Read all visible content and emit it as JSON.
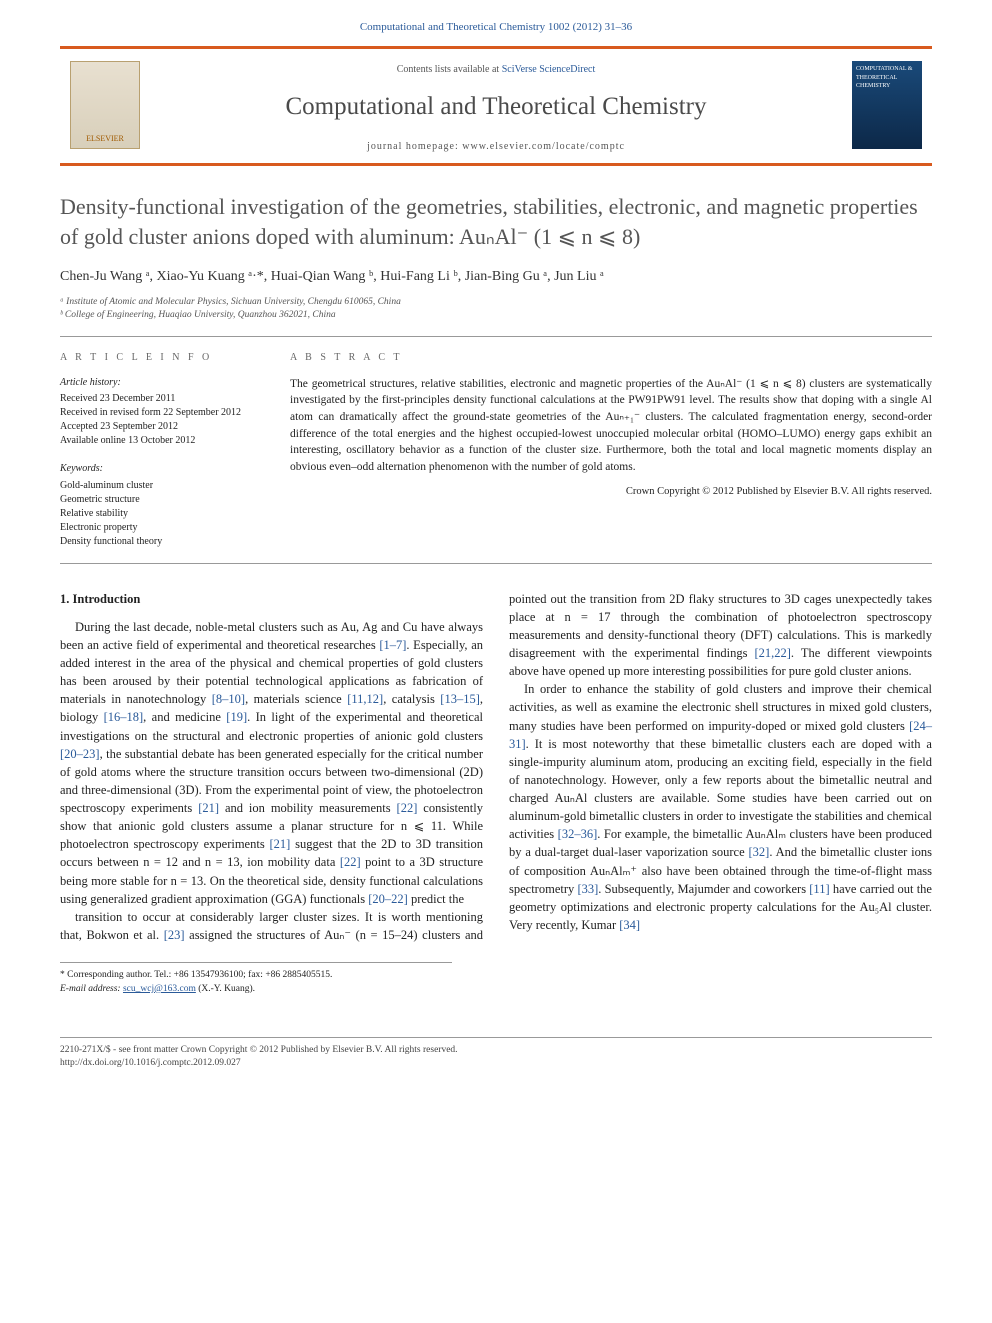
{
  "top_citation": "Computational and Theoretical Chemistry 1002 (2012) 31–36",
  "header": {
    "contents_prefix": "Contents lists available at ",
    "contents_link": "SciVerse ScienceDirect",
    "journal_name": "Computational and Theoretical Chemistry",
    "homepage_prefix": "journal homepage: ",
    "homepage_url": "www.elsevier.com/locate/comptc",
    "elsevier_label": "ELSEVIER",
    "cover_label": "COMPUTATIONAL & THEORETICAL CHEMISTRY"
  },
  "title": "Density-functional investigation of the geometries, stabilities, electronic, and magnetic properties of gold cluster anions doped with aluminum: AuₙAl⁻ (1 ⩽ n ⩽ 8)",
  "authors_html": "Chen-Ju Wang ᵃ, Xiao-Yu Kuang ᵃ·*, Huai-Qian Wang ᵇ, Hui-Fang Li ᵇ, Jian-Bing Gu ᵃ, Jun Liu ᵃ",
  "affiliations": [
    "ᵃ Institute of Atomic and Molecular Physics, Sichuan University, Chengdu 610065, China",
    "ᵇ College of Engineering, Huaqiao University, Quanzhou 362021, China"
  ],
  "article_info": {
    "label": "A R T I C L E   I N F O",
    "history_label": "Article history:",
    "history": [
      "Received 23 December 2011",
      "Received in revised form 22 September 2012",
      "Accepted 23 September 2012",
      "Available online 13 October 2012"
    ],
    "kw_label": "Keywords:",
    "keywords": [
      "Gold-aluminum cluster",
      "Geometric structure",
      "Relative stability",
      "Electronic property",
      "Density functional theory"
    ]
  },
  "abstract": {
    "label": "A B S T R A C T",
    "text": "The geometrical structures, relative stabilities, electronic and magnetic properties of the AuₙAl⁻ (1 ⩽ n ⩽ 8) clusters are systematically investigated by the first-principles density functional calculations at the PW91PW91 level. The results show that doping with a single Al atom can dramatically affect the ground-state geometries of the Auₙ₊₁⁻ clusters. The calculated fragmentation energy, second-order difference of the total energies and the highest occupied-lowest unoccupied molecular orbital (HOMO–LUMO) energy gaps exhibit an interesting, oscillatory behavior as a function of the cluster size. Furthermore, both the total and local magnetic moments display an obvious even–odd alternation phenomenon with the number of gold atoms.",
    "copyright": "Crown Copyright © 2012 Published by Elsevier B.V. All rights reserved."
  },
  "intro_heading": "1. Introduction",
  "intro_p1": "During the last decade, noble-metal clusters such as Au, Ag and Cu have always been an active field of experimental and theoretical researches [1–7]. Especially, an added interest in the area of the physical and chemical properties of gold clusters has been aroused by their potential technological applications as fabrication of materials in nanotechnology [8–10], materials science [11,12], catalysis [13–15], biology [16–18], and medicine [19]. In light of the experimental and theoretical investigations on the structural and electronic properties of anionic gold clusters [20–23], the substantial debate has been generated especially for the critical number of gold atoms where the structure transition occurs between two-dimensional (2D) and three-dimensional (3D). From the experimental point of view, the photoelectron spectroscopy experiments [21] and ion mobility measurements [22] consistently show that anionic gold clusters assume a planar structure for n ⩽ 11. While photoelectron spectroscopy experiments [21] suggest that the 2D to 3D transition occurs between n = 12 and n = 13, ion mobility data [22] point to a 3D structure being more stable for n = 13. On the theoretical side, density functional calculations using generalized gradient approximation (GGA) functionals [20–22] predict the",
  "intro_p2": "transition to occur at considerably larger cluster sizes. It is worth mentioning that, Bokwon et al. [23] assigned the structures of Auₙ⁻ (n = 15–24) clusters and pointed out the transition from 2D flaky structures to 3D cages unexpectedly takes place at n = 17 through the combination of photoelectron spectroscopy measurements and density-functional theory (DFT) calculations. This is markedly disagreement with the experimental findings [21,22]. The different viewpoints above have opened up more interesting possibilities for pure gold cluster anions.",
  "intro_p3": "In order to enhance the stability of gold clusters and improve their chemical activities, as well as examine the electronic shell structures in mixed gold clusters, many studies have been performed on impurity-doped or mixed gold clusters [24–31]. It is most noteworthy that these bimetallic clusters each are doped with a single-impurity aluminum atom, producing an exciting field, especially in the field of nanotechnology. However, only a few reports about the bimetallic neutral and charged AuₙAl clusters are available. Some studies have been carried out on aluminum-gold bimetallic clusters in order to investigate the stabilities and chemical activities [32–36]. For example, the bimetallic AuₙAlₘ clusters have been produced by a dual-target dual-laser vaporization source [32]. And the bimetallic cluster ions of composition AuₙAlₘ⁺ also have been obtained through the time-of-flight mass spectrometry [33]. Subsequently, Majumder and coworkers [11] have carried out the geometry optimizations and electronic property calculations for the Au₅Al cluster. Very recently, Kumar [34]",
  "corresponding": {
    "line1": "* Corresponding author. Tel.: +86 13547936100; fax: +86 2885405515.",
    "line2_label": "E-mail address: ",
    "email": "scu_wcj@163.com",
    "line2_suffix": " (X.-Y. Kuang)."
  },
  "footer": {
    "line1": "2210-271X/$ - see front matter Crown Copyright © 2012 Published by Elsevier B.V. All rights reserved.",
    "line2": "http://dx.doi.org/10.1016/j.comptc.2012.09.027"
  },
  "colors": {
    "orange_rule": "#d85a1e",
    "link_blue": "#2a5a99",
    "title_grey": "#555555"
  }
}
